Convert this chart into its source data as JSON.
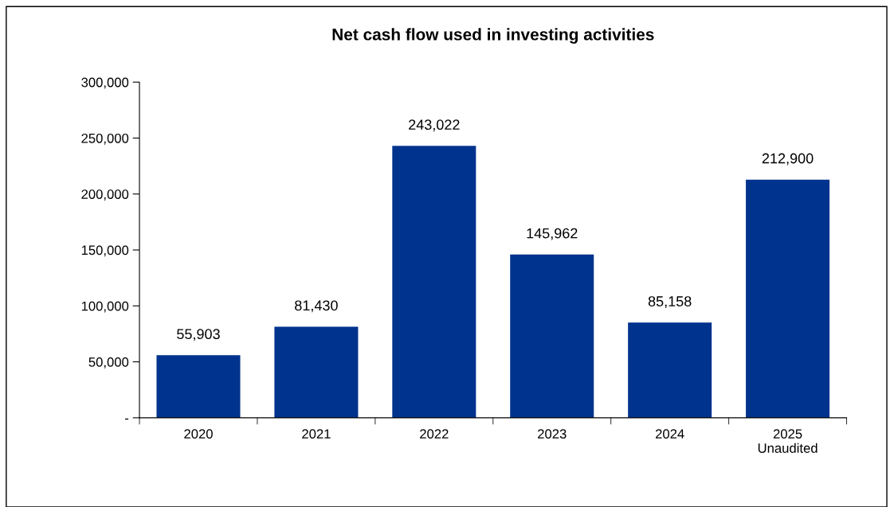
{
  "chart_data": {
    "type": "bar",
    "title": "Net cash flow used in investing activities",
    "categories": [
      "2020",
      "2021",
      "2022",
      "2023",
      "2024",
      "2025\nUnaudited"
    ],
    "values": [
      55903,
      81430,
      243022,
      145962,
      85158,
      212900
    ],
    "value_labels": [
      "55,903",
      "81,430",
      "243,022",
      "145,962",
      "85,158",
      "212,900"
    ],
    "color": "#00338d",
    "ylim": [
      0,
      300000
    ],
    "yticks": [
      {
        "value": 0,
        "label": "-"
      },
      {
        "value": 50000,
        "label": "50,000"
      },
      {
        "value": 100000,
        "label": "100,000"
      },
      {
        "value": 150000,
        "label": "150,000"
      },
      {
        "value": 200000,
        "label": "200,000"
      },
      {
        "value": 250000,
        "label": "250,000"
      },
      {
        "value": 300000,
        "label": "300,000"
      }
    ],
    "grid": false
  }
}
